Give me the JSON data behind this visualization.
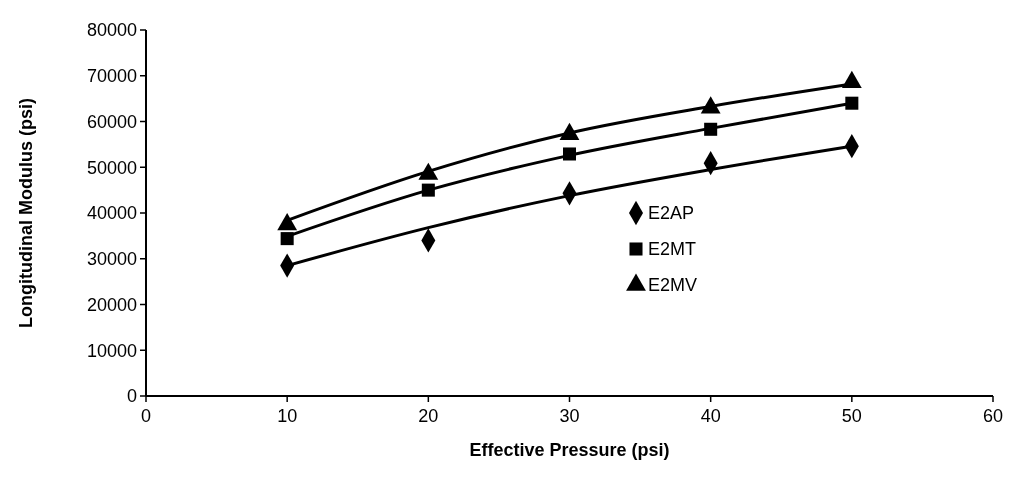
{
  "chart_data": {
    "type": "scatter",
    "xlabel": "Effective Pressure (psi)",
    "ylabel": "Longitudinal Modulus (psi)",
    "xlim": [
      0,
      60
    ],
    "xticks": [
      0,
      10,
      20,
      30,
      40,
      50,
      60
    ],
    "ylim": [
      0,
      80000
    ],
    "yticks": [
      0,
      10000,
      20000,
      30000,
      40000,
      50000,
      60000,
      70000,
      80000
    ],
    "grid": false,
    "legend": "right",
    "series": [
      {
        "name": "E2AP",
        "color": "#000000",
        "marker": "diamond",
        "x": [
          10,
          20,
          30,
          40,
          50
        ],
        "values": [
          28500,
          34000,
          44300,
          50900,
          54600
        ]
      },
      {
        "name": "E2MT",
        "color": "#000000",
        "marker": "square",
        "x": [
          10,
          20,
          30,
          40,
          50
        ],
        "values": [
          34400,
          45000,
          52900,
          58300,
          64000
        ]
      },
      {
        "name": "E2MV",
        "color": "#000000",
        "marker": "triangle",
        "x": [
          10,
          20,
          30,
          40,
          50
        ],
        "values": [
          37500,
          48500,
          57200,
          63000,
          68600
        ]
      },
      {
        "type": "line",
        "color": "#000000",
        "marker": "none",
        "x": [
          10,
          20,
          30,
          40,
          50
        ],
        "values": [
          28500,
          36800,
          43800,
          49500,
          54600
        ]
      },
      {
        "type": "line",
        "color": "#000000",
        "marker": "none",
        "x": [
          10,
          20,
          30,
          40,
          50
        ],
        "values": [
          34900,
          45000,
          52600,
          58500,
          64000
        ]
      },
      {
        "type": "line",
        "color": "#000000",
        "marker": "none",
        "x": [
          10,
          20,
          30,
          40,
          50
        ],
        "values": [
          38400,
          49100,
          57500,
          63300,
          68200
        ]
      }
    ]
  }
}
